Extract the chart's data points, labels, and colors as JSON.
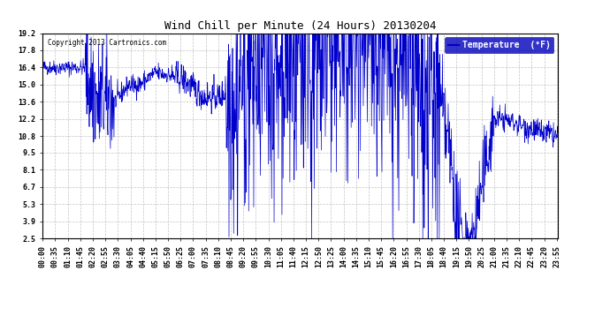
{
  "title": "Wind Chill per Minute (24 Hours) 20130204",
  "copyright": "Copyright 2013 Cartronics.com",
  "legend_label": "Temperature  (°F)",
  "line_color": "#0000CC",
  "bg_color": "#FFFFFF",
  "plot_bg_color": "#FFFFFF",
  "grid_color": "#AAAAAA",
  "yticks": [
    2.5,
    3.9,
    5.3,
    6.7,
    8.1,
    9.5,
    10.8,
    12.2,
    13.6,
    15.0,
    16.4,
    17.8,
    19.2
  ],
  "ylim": [
    2.5,
    19.2
  ],
  "num_minutes": 1440,
  "seed": 42,
  "xtick_step": 35,
  "title_fontsize": 9,
  "tick_fontsize": 6,
  "legend_fontsize": 7
}
